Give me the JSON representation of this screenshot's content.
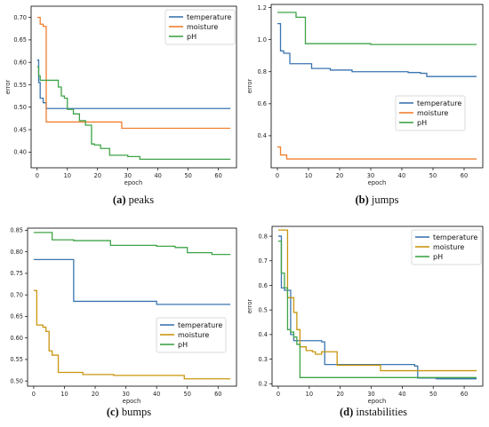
{
  "colors": {
    "blue": "#3a75b0",
    "orange": "#f07f2f",
    "green": "#3fa348",
    "gold": "#c9960f"
  },
  "chart_data": [
    {
      "type": "line",
      "caption": {
        "letter": "(a)",
        "text": "peaks"
      },
      "xlabel": "epoch",
      "ylabel": "error",
      "xlim": [
        -2,
        66
      ],
      "ylim": [
        0.365,
        0.725
      ],
      "xticks": [
        0,
        10,
        20,
        30,
        40,
        50,
        60
      ],
      "yticks": [
        0.4,
        0.45,
        0.5,
        0.55,
        0.6,
        0.65,
        0.7
      ],
      "ytick_labels": [
        "0.40",
        "0.45",
        "0.50",
        "0.55",
        "0.60",
        "0.65",
        "0.70"
      ],
      "legend": "top-right",
      "series": [
        {
          "name": "temperature",
          "color": "#3a75b0",
          "step": true,
          "x": [
            0,
            0.5,
            1,
            2,
            3,
            64
          ],
          "y": [
            0.605,
            0.555,
            0.52,
            0.51,
            0.497,
            0.497
          ]
        },
        {
          "name": "moisture",
          "color": "#f07f2f",
          "step": true,
          "x": [
            0,
            1,
            2,
            3,
            28,
            64
          ],
          "y": [
            0.7,
            0.685,
            0.68,
            0.467,
            0.453,
            0.453
          ]
        },
        {
          "name": "pH",
          "color": "#3fa348",
          "step": true,
          "x": [
            0,
            0.5,
            1,
            7,
            8,
            9,
            10,
            12,
            14,
            16,
            18,
            19,
            21,
            24,
            30,
            34,
            64
          ],
          "y": [
            0.59,
            0.57,
            0.56,
            0.545,
            0.525,
            0.52,
            0.495,
            0.485,
            0.47,
            0.46,
            0.418,
            0.416,
            0.408,
            0.393,
            0.39,
            0.384,
            0.384
          ]
        }
      ]
    },
    {
      "type": "line",
      "caption": {
        "letter": "(b)",
        "text": "jumps"
      },
      "xlabel": "epoch",
      "ylabel": "error",
      "xlim": [
        -2,
        66
      ],
      "ylim": [
        0.2,
        1.22
      ],
      "xticks": [
        0,
        10,
        20,
        30,
        40,
        50,
        60
      ],
      "yticks": [
        0.4,
        0.6,
        0.8,
        1.0,
        1.2
      ],
      "ytick_labels": [
        "0.4",
        "0.6",
        "0.8",
        "1.0",
        "1.2"
      ],
      "legend": "right",
      "series": [
        {
          "name": "temperature",
          "color": "#3a75b0",
          "step": true,
          "x": [
            0,
            1,
            2,
            4,
            11,
            17,
            24,
            33,
            42,
            46,
            48,
            64
          ],
          "y": [
            1.1,
            0.93,
            0.915,
            0.85,
            0.82,
            0.81,
            0.8,
            0.8,
            0.795,
            0.79,
            0.77,
            0.77
          ]
        },
        {
          "name": "moisture",
          "color": "#f07f2f",
          "step": true,
          "x": [
            0,
            1,
            3,
            64
          ],
          "y": [
            0.33,
            0.28,
            0.255,
            0.255
          ]
        },
        {
          "name": "pH",
          "color": "#3fa348",
          "step": true,
          "x": [
            0,
            4,
            6,
            9,
            30,
            64
          ],
          "y": [
            1.17,
            1.17,
            1.14,
            0.975,
            0.97,
            0.97
          ]
        }
      ]
    },
    {
      "type": "line",
      "caption": {
        "letter": "(c)",
        "text": "bumps"
      },
      "xlabel": "epoch",
      "ylabel": "",
      "xlim": [
        -2,
        66
      ],
      "ylim": [
        0.488,
        0.855
      ],
      "xticks": [
        0,
        10,
        20,
        30,
        40,
        50,
        60
      ],
      "yticks": [
        0.5,
        0.55,
        0.6,
        0.65,
        0.7,
        0.75,
        0.8,
        0.85
      ],
      "ytick_labels": [
        "0.50",
        "0.55",
        "0.60",
        "0.65",
        "0.70",
        "0.75",
        "0.80",
        "0.85"
      ],
      "legend": "bottom-right",
      "series": [
        {
          "name": "temperature",
          "color": "#3a75b0",
          "step": true,
          "x": [
            0,
            12,
            13,
            40,
            64
          ],
          "y": [
            0.782,
            0.782,
            0.685,
            0.678,
            0.678
          ]
        },
        {
          "name": "moisture",
          "color": "#c9960f",
          "step": true,
          "x": [
            0,
            1,
            3,
            4,
            5,
            6,
            8,
            16,
            26,
            49,
            50,
            64
          ],
          "y": [
            0.71,
            0.63,
            0.625,
            0.615,
            0.57,
            0.56,
            0.52,
            0.515,
            0.513,
            0.505,
            0.505,
            0.505
          ]
        },
        {
          "name": "pH",
          "color": "#3fa348",
          "step": true,
          "x": [
            0,
            5,
            6,
            13,
            25,
            40,
            46,
            50,
            58,
            64
          ],
          "y": [
            0.845,
            0.845,
            0.828,
            0.826,
            0.815,
            0.813,
            0.81,
            0.798,
            0.794,
            0.794
          ]
        }
      ]
    },
    {
      "type": "line",
      "caption": {
        "letter": "(d)",
        "text": "instabilities"
      },
      "xlabel": "epoch",
      "ylabel": "error",
      "xlim": [
        -2,
        66
      ],
      "ylim": [
        0.19,
        0.84
      ],
      "xticks": [
        0,
        10,
        20,
        30,
        40,
        50,
        60
      ],
      "yticks": [
        0.2,
        0.3,
        0.4,
        0.5,
        0.6,
        0.7,
        0.8
      ],
      "ytick_labels": [
        "0.2",
        "0.3",
        "0.4",
        "0.5",
        "0.6",
        "0.7",
        "0.8"
      ],
      "legend": "top-right",
      "series": [
        {
          "name": "temperature",
          "color": "#3a75b0",
          "step": true,
          "x": [
            0,
            1,
            2,
            4,
            5,
            14,
            15,
            28,
            44,
            45,
            51,
            64
          ],
          "y": [
            0.8,
            0.59,
            0.58,
            0.4,
            0.375,
            0.37,
            0.278,
            0.278,
            0.272,
            0.223,
            0.22,
            0.22
          ]
        },
        {
          "name": "moisture",
          "color": "#c9960f",
          "step": true,
          "x": [
            0,
            3,
            5,
            6,
            7,
            9,
            11,
            12,
            14,
            19,
            22,
            33,
            64
          ],
          "y": [
            0.825,
            0.55,
            0.49,
            0.42,
            0.35,
            0.335,
            0.33,
            0.32,
            0.33,
            0.275,
            0.275,
            0.253,
            0.253
          ]
        },
        {
          "name": "pH",
          "color": "#3fa348",
          "step": true,
          "x": [
            0,
            1,
            2,
            3,
            4,
            5,
            6,
            7,
            64
          ],
          "y": [
            0.78,
            0.65,
            0.59,
            0.42,
            0.41,
            0.39,
            0.36,
            0.225,
            0.225
          ]
        }
      ]
    }
  ]
}
